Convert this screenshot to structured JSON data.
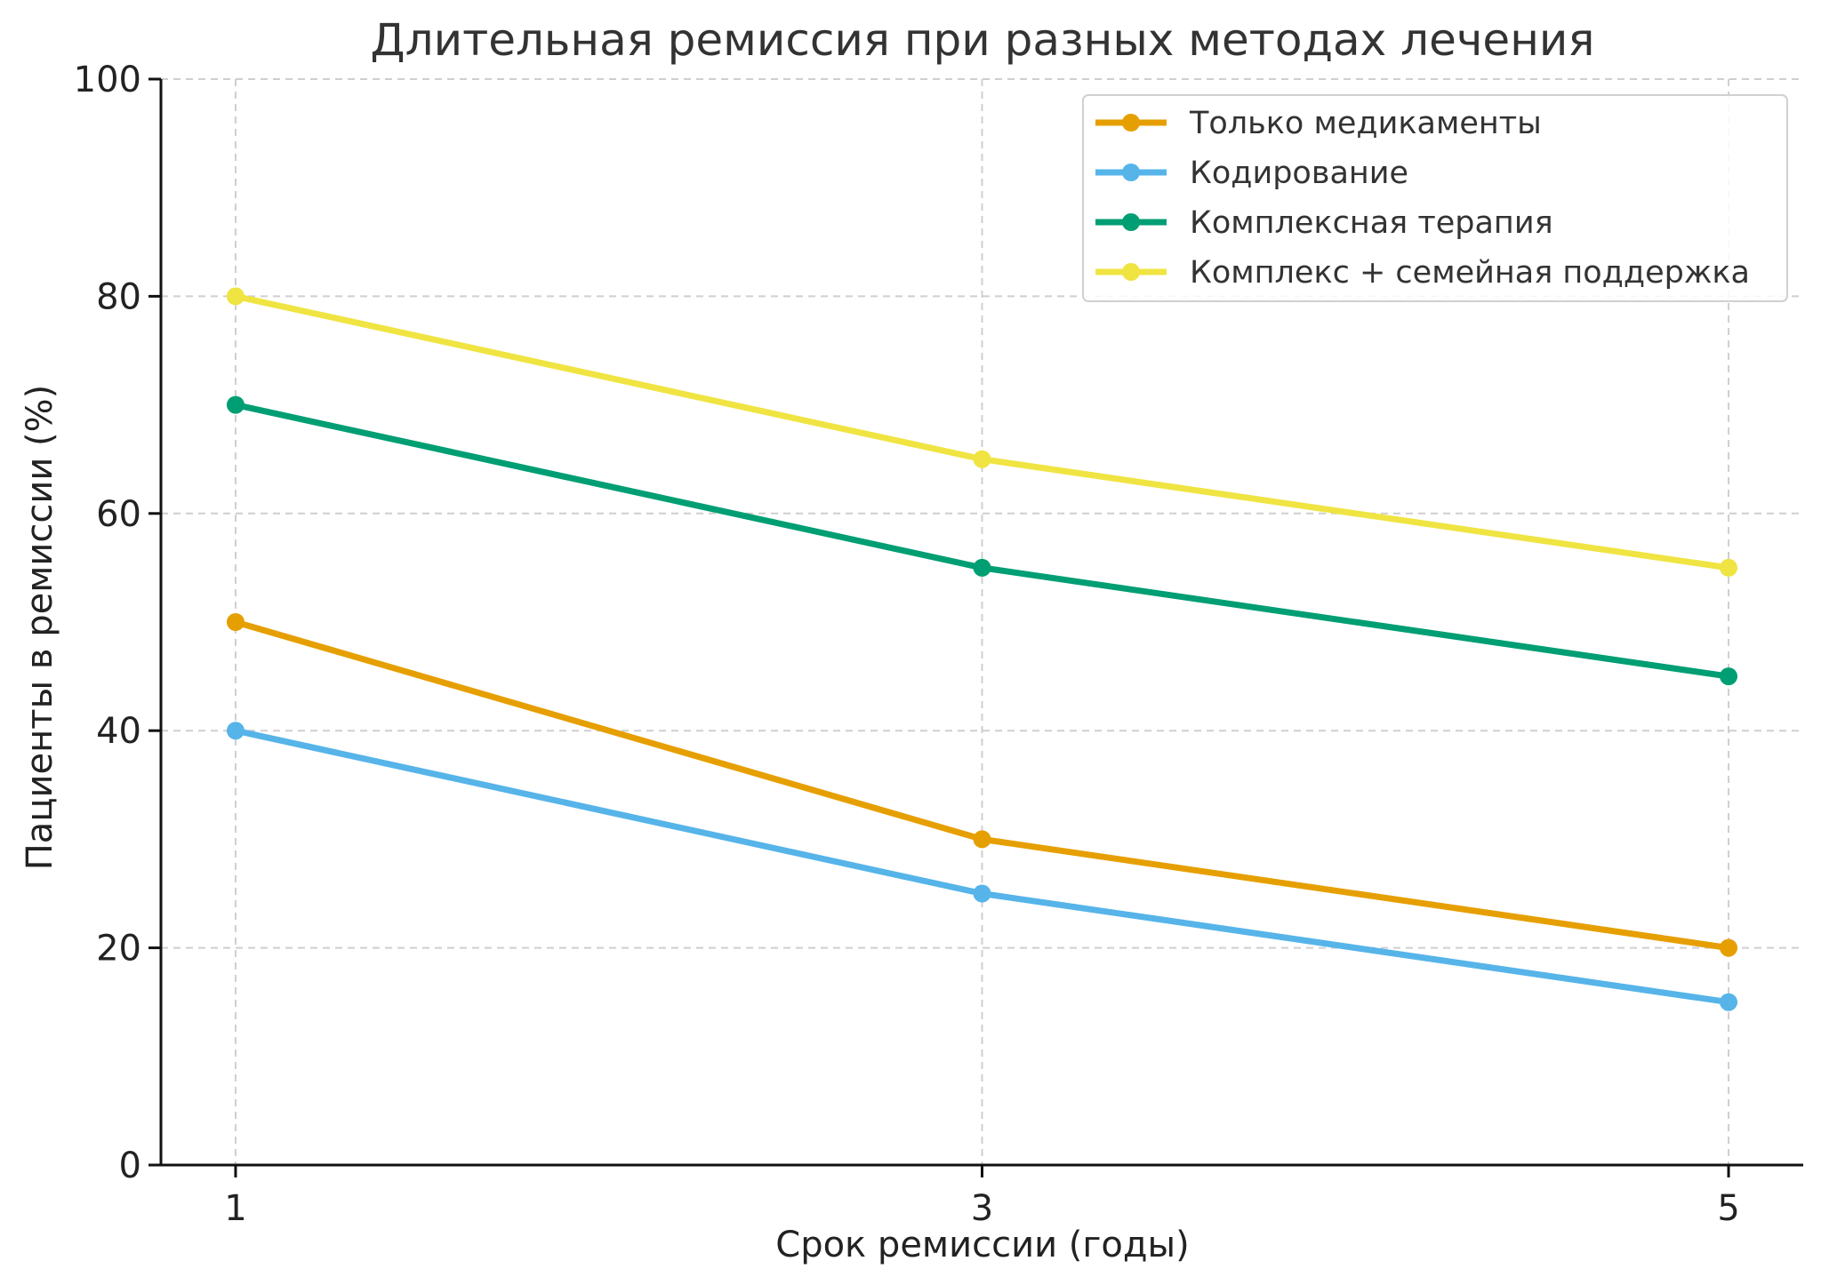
{
  "chart_data": {
    "type": "line",
    "title": "Длительная ремиссия при разных методах лечения",
    "xlabel": "Срок ремиссии (годы)",
    "ylabel": "Пациенты в ремиссии (%)",
    "x": [
      1,
      3,
      5
    ],
    "x_tick_labels": [
      "1",
      "3",
      "5"
    ],
    "ylim": [
      0,
      100
    ],
    "y_ticks": [
      0,
      20,
      40,
      60,
      80,
      100
    ],
    "y_tick_labels": [
      "0",
      "20",
      "40",
      "60",
      "80",
      "100"
    ],
    "grid": true,
    "legend_position": "top-right",
    "series": [
      {
        "name": "Только медикаменты",
        "values": [
          50,
          30,
          20
        ],
        "color": "#E69F00"
      },
      {
        "name": "Кодирование",
        "values": [
          40,
          25,
          15
        ],
        "color": "#56B4E9"
      },
      {
        "name": "Комплексная терапия",
        "values": [
          70,
          55,
          45
        ],
        "color": "#009E73"
      },
      {
        "name": "Комплекс + семейная поддержка",
        "values": [
          80,
          65,
          55
        ],
        "color": "#F0E442"
      }
    ]
  }
}
